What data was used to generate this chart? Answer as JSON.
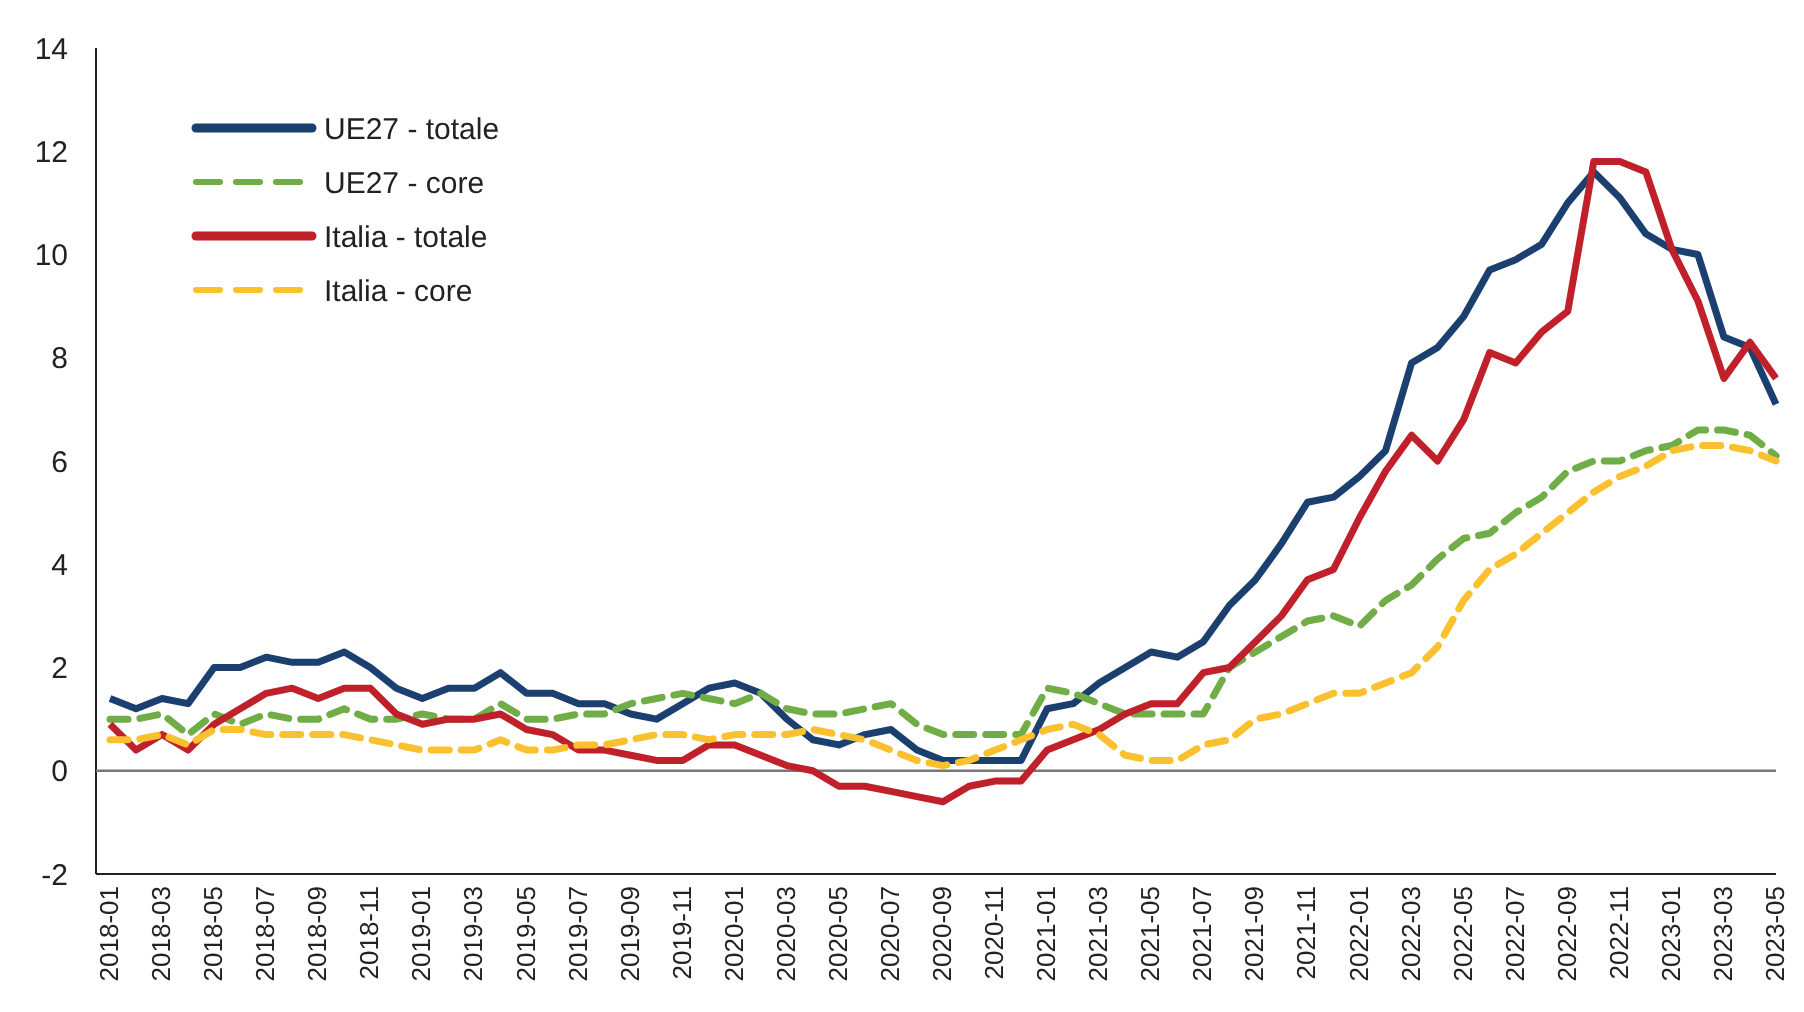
{
  "chart_data": {
    "type": "line",
    "categories": [
      "2018-01",
      null,
      "2018-03",
      null,
      "2018-05",
      null,
      "2018-07",
      null,
      "2018-09",
      null,
      "2018-11",
      null,
      "2019-01",
      null,
      "2019-03",
      null,
      "2019-05",
      null,
      "2019-07",
      null,
      "2019-09",
      null,
      "2019-11",
      null,
      "2020-01",
      null,
      "2020-03",
      null,
      "2020-05",
      null,
      "2020-07",
      null,
      "2020-09",
      null,
      "2020-11",
      null,
      "2021-01",
      null,
      "2021-03",
      null,
      "2021-05",
      null,
      "2021-07",
      null,
      "2021-09",
      null,
      "2021-11",
      null,
      "2022-01",
      null,
      "2022-03",
      null,
      "2022-05",
      null,
      "2022-07",
      null,
      "2022-09",
      null,
      "2022-11",
      null,
      "2023-01",
      null,
      "2023-03",
      null,
      "2023-05"
    ],
    "series": [
      {
        "name": "UE27 - totale",
        "color": "#1b3f6e",
        "line_style": "solid",
        "values": [
          1.4,
          1.2,
          1.4,
          1.3,
          2.0,
          2.0,
          2.2,
          2.1,
          2.1,
          2.3,
          2.0,
          1.6,
          1.4,
          1.6,
          1.6,
          1.9,
          1.5,
          1.5,
          1.3,
          1.3,
          1.1,
          1.0,
          1.3,
          1.6,
          1.7,
          1.5,
          1.0,
          0.6,
          0.5,
          0.7,
          0.8,
          0.4,
          0.2,
          0.2,
          0.2,
          0.2,
          1.2,
          1.3,
          1.7,
          2.0,
          2.3,
          2.2,
          2.5,
          3.2,
          3.7,
          4.4,
          5.2,
          5.3,
          5.7,
          6.2,
          7.9,
          8.2,
          8.8,
          9.7,
          9.9,
          10.2,
          11.0,
          11.6,
          11.1,
          10.4,
          10.1,
          10.0,
          8.4,
          8.2,
          7.1
        ]
      },
      {
        "name": "UE27 - core",
        "color": "#70ad47",
        "line_style": "dashed",
        "values": [
          1.0,
          1.0,
          1.1,
          0.7,
          1.1,
          0.9,
          1.1,
          1.0,
          1.0,
          1.2,
          1.0,
          1.0,
          1.1,
          1.0,
          1.0,
          1.3,
          1.0,
          1.0,
          1.1,
          1.1,
          1.3,
          1.4,
          1.5,
          1.4,
          1.3,
          1.5,
          1.2,
          1.1,
          1.1,
          1.2,
          1.3,
          0.9,
          0.7,
          0.7,
          0.7,
          0.7,
          1.6,
          1.5,
          1.3,
          1.1,
          1.1,
          1.1,
          1.1,
          2.0,
          2.3,
          2.6,
          2.9,
          3.0,
          2.8,
          3.3,
          3.6,
          4.1,
          4.5,
          4.6,
          5.0,
          5.3,
          5.8,
          6.0,
          6.0,
          6.2,
          6.3,
          6.6,
          6.6,
          6.5,
          6.1
        ]
      },
      {
        "name": "Italia - totale",
        "color": "#c0202a",
        "line_style": "solid",
        "values": [
          0.9,
          0.4,
          0.7,
          0.4,
          0.9,
          1.2,
          1.5,
          1.6,
          1.4,
          1.6,
          1.6,
          1.1,
          0.9,
          1.0,
          1.0,
          1.1,
          0.8,
          0.7,
          0.4,
          0.4,
          0.3,
          0.2,
          0.2,
          0.5,
          0.5,
          0.3,
          0.1,
          0.0,
          -0.3,
          -0.3,
          -0.4,
          -0.5,
          -0.6,
          -0.3,
          -0.2,
          -0.2,
          0.4,
          0.6,
          0.8,
          1.1,
          1.3,
          1.3,
          1.9,
          2.0,
          2.5,
          3.0,
          3.7,
          3.9,
          4.9,
          5.8,
          6.5,
          6.0,
          6.8,
          8.1,
          7.9,
          8.5,
          8.9,
          11.8,
          11.8,
          11.6,
          10.1,
          9.1,
          7.6,
          8.3,
          7.6
        ]
      },
      {
        "name": "Italia - core",
        "color": "#fbc02d",
        "line_style": "dashed",
        "values": [
          0.6,
          0.6,
          0.7,
          0.5,
          0.8,
          0.8,
          0.7,
          0.7,
          0.7,
          0.7,
          0.6,
          0.5,
          0.4,
          0.4,
          0.4,
          0.6,
          0.4,
          0.4,
          0.5,
          0.5,
          0.6,
          0.7,
          0.7,
          0.6,
          0.7,
          0.7,
          0.7,
          0.8,
          0.7,
          0.6,
          0.4,
          0.2,
          0.1,
          0.2,
          0.4,
          0.6,
          0.8,
          0.9,
          0.7,
          0.3,
          0.2,
          0.2,
          0.5,
          0.6,
          1.0,
          1.1,
          1.3,
          1.5,
          1.5,
          1.7,
          1.9,
          2.4,
          3.3,
          3.9,
          4.2,
          4.6,
          5.0,
          5.4,
          5.7,
          5.9,
          6.2,
          6.3,
          6.3,
          6.2,
          6.0
        ]
      }
    ],
    "ylim": [
      -2,
      14
    ],
    "yticks": [
      -2,
      0,
      2,
      4,
      6,
      8,
      10,
      12,
      14
    ],
    "legend": "top left",
    "marker": "none"
  }
}
